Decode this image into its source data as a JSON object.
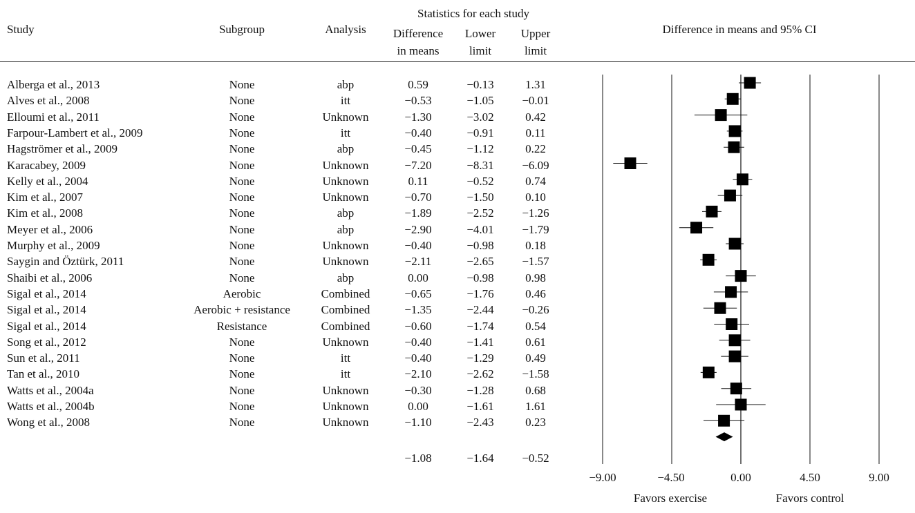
{
  "headers": {
    "study": "Study",
    "subgroup": "Subgroup",
    "analysis": "Analysis",
    "stats_group": "Statistics for each study",
    "diff_l1": "Difference",
    "diff_l2": "in means",
    "lower_l1": "Lower",
    "lower_l2": "limit",
    "upper_l1": "Upper",
    "upper_l2": "limit",
    "plot_title": "Difference in means and 95% CI"
  },
  "rows": [
    {
      "study": "Alberga et al., 2013",
      "subgroup": "None",
      "analysis": "abp",
      "diff": "0.59",
      "lower": "−0.13",
      "upper": "1.31"
    },
    {
      "study": "Alves et al., 2008",
      "subgroup": "None",
      "analysis": "itt",
      "diff": "−0.53",
      "lower": "−1.05",
      "upper": "−0.01"
    },
    {
      "study": "Elloumi et al., 2011",
      "subgroup": "None",
      "analysis": "Unknown",
      "diff": "−1.30",
      "lower": "−3.02",
      "upper": "0.42"
    },
    {
      "study": "Farpour-Lambert et al., 2009",
      "subgroup": "None",
      "analysis": "itt",
      "diff": "−0.40",
      "lower": "−0.91",
      "upper": "0.11"
    },
    {
      "study": "Hagströmer et al., 2009",
      "subgroup": "None",
      "analysis": "abp",
      "diff": "−0.45",
      "lower": "−1.12",
      "upper": "0.22"
    },
    {
      "study": "Karacabey, 2009",
      "subgroup": "None",
      "analysis": "Unknown",
      "diff": "−7.20",
      "lower": "−8.31",
      "upper": "−6.09"
    },
    {
      "study": "Kelly et al., 2004",
      "subgroup": "None",
      "analysis": "Unknown",
      "diff": "0.11",
      "lower": "−0.52",
      "upper": "0.74"
    },
    {
      "study": "Kim et al., 2007",
      "subgroup": "None",
      "analysis": "Unknown",
      "diff": "−0.70",
      "lower": "−1.50",
      "upper": "0.10"
    },
    {
      "study": "Kim et al., 2008",
      "subgroup": "None",
      "analysis": "abp",
      "diff": "−1.89",
      "lower": "−2.52",
      "upper": "−1.26"
    },
    {
      "study": "Meyer et al., 2006",
      "subgroup": "None",
      "analysis": "abp",
      "diff": "−2.90",
      "lower": "−4.01",
      "upper": "−1.79"
    },
    {
      "study": "Murphy et al., 2009",
      "subgroup": "None",
      "analysis": "Unknown",
      "diff": "−0.40",
      "lower": "−0.98",
      "upper": "0.18"
    },
    {
      "study": "Saygin and Öztürk, 2011",
      "subgroup": "None",
      "analysis": "Unknown",
      "diff": "−2.11",
      "lower": "−2.65",
      "upper": "−1.57"
    },
    {
      "study": "Shaibi et al., 2006",
      "subgroup": "None",
      "analysis": "abp",
      "diff": "0.00",
      "lower": "−0.98",
      "upper": "0.98"
    },
    {
      "study": "Sigal et al., 2014",
      "subgroup": "Aerobic",
      "analysis": "Combined",
      "diff": "−0.65",
      "lower": "−1.76",
      "upper": "0.46"
    },
    {
      "study": "Sigal et al., 2014",
      "subgroup": "Aerobic + resistance",
      "analysis": "Combined",
      "diff": "−1.35",
      "lower": "−2.44",
      "upper": "−0.26"
    },
    {
      "study": "Sigal et al., 2014",
      "subgroup": "Resistance",
      "analysis": "Combined",
      "diff": "−0.60",
      "lower": "−1.74",
      "upper": "0.54"
    },
    {
      "study": "Song et al., 2012",
      "subgroup": "None",
      "analysis": "Unknown",
      "diff": "−0.40",
      "lower": "−1.41",
      "upper": "0.61"
    },
    {
      "study": "Sun et al., 2011",
      "subgroup": "None",
      "analysis": "itt",
      "diff": "−0.40",
      "lower": "−1.29",
      "upper": "0.49"
    },
    {
      "study": "Tan et al., 2010",
      "subgroup": "None",
      "analysis": "itt",
      "diff": "−2.10",
      "lower": "−2.62",
      "upper": "−1.58"
    },
    {
      "study": "Watts et al., 2004a",
      "subgroup": "None",
      "analysis": "Unknown",
      "diff": "−0.30",
      "lower": "−1.28",
      "upper": "0.68"
    },
    {
      "study": "Watts et al., 2004b",
      "subgroup": "None",
      "analysis": "Unknown",
      "diff": "0.00",
      "lower": "−1.61",
      "upper": "1.61"
    },
    {
      "study": "Wong et al., 2008",
      "subgroup": "None",
      "analysis": "Unknown",
      "diff": "−1.10",
      "lower": "−2.43",
      "upper": "0.23"
    }
  ],
  "summary": {
    "diff": "−1.08",
    "lower": "−1.64",
    "upper": "−0.52"
  },
  "axis": {
    "ticks": [
      "−9.00",
      "−4.50",
      "0.00",
      "4.50",
      "9.00"
    ]
  },
  "favors": {
    "left": "Favors exercise",
    "right": "Favors control"
  },
  "chart_data": {
    "type": "forest",
    "xlim": [
      -9,
      9
    ],
    "xticks": [
      -9,
      -4.5,
      0,
      4.5,
      9
    ],
    "points": [
      {
        "y": 0.59,
        "lo": -0.13,
        "hi": 1.31
      },
      {
        "y": -0.53,
        "lo": -1.05,
        "hi": -0.01
      },
      {
        "y": -1.3,
        "lo": -3.02,
        "hi": 0.42
      },
      {
        "y": -0.4,
        "lo": -0.91,
        "hi": 0.11
      },
      {
        "y": -0.45,
        "lo": -1.12,
        "hi": 0.22
      },
      {
        "y": -7.2,
        "lo": -8.31,
        "hi": -6.09
      },
      {
        "y": 0.11,
        "lo": -0.52,
        "hi": 0.74
      },
      {
        "y": -0.7,
        "lo": -1.5,
        "hi": 0.1
      },
      {
        "y": -1.89,
        "lo": -2.52,
        "hi": -1.26
      },
      {
        "y": -2.9,
        "lo": -4.01,
        "hi": -1.79
      },
      {
        "y": -0.4,
        "lo": -0.98,
        "hi": 0.18
      },
      {
        "y": -2.11,
        "lo": -2.65,
        "hi": -1.57
      },
      {
        "y": 0.0,
        "lo": -0.98,
        "hi": 0.98
      },
      {
        "y": -0.65,
        "lo": -1.76,
        "hi": 0.46
      },
      {
        "y": -1.35,
        "lo": -2.44,
        "hi": -0.26
      },
      {
        "y": -0.6,
        "lo": -1.74,
        "hi": 0.54
      },
      {
        "y": -0.4,
        "lo": -1.41,
        "hi": 0.61
      },
      {
        "y": -0.4,
        "lo": -1.29,
        "hi": 0.49
      },
      {
        "y": -2.1,
        "lo": -2.62,
        "hi": -1.58
      },
      {
        "y": -0.3,
        "lo": -1.28,
        "hi": 0.68
      },
      {
        "y": 0.0,
        "lo": -1.61,
        "hi": 1.61
      },
      {
        "y": -1.1,
        "lo": -2.43,
        "hi": 0.23
      }
    ],
    "summary": {
      "y": -1.08,
      "lo": -1.64,
      "hi": -0.52
    }
  }
}
